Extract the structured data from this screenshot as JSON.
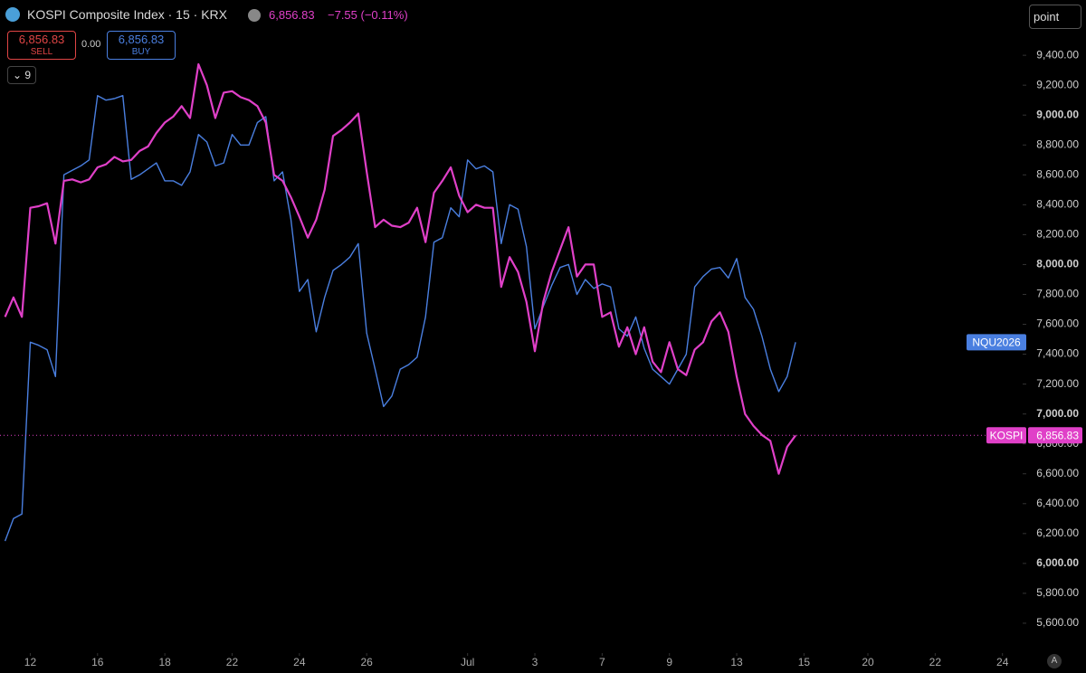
{
  "header": {
    "title": "KOSPI Composite Index · 15 · KRX",
    "last_price": "6,856.83",
    "change": "−7.55 (−0.11%)",
    "sell_price": "6,856.83",
    "sell_label": "SELL",
    "spread": "0.00",
    "buy_price": "6,856.83",
    "buy_label": "BUY",
    "indicator_count": "9",
    "search_text": "point",
    "auto_scale": "A"
  },
  "chart_data": {
    "type": "line",
    "grid": false,
    "x": [
      -0.75,
      -0.5,
      -0.25,
      0,
      0.25,
      0.5,
      0.75,
      1,
      1.25,
      1.5,
      1.75,
      2,
      2.25,
      2.5,
      2.75,
      3,
      3.25,
      3.5,
      3.75,
      4,
      4.25,
      4.5,
      4.75,
      5,
      5.25,
      5.5,
      5.75,
      6,
      6.25,
      6.5,
      6.75,
      7,
      7.25,
      7.5,
      7.75,
      8,
      8.25,
      8.5,
      8.75,
      9,
      9.25,
      9.5,
      9.75,
      10,
      10.25,
      10.5,
      10.75,
      11,
      11.25,
      11.5,
      11.75,
      12,
      12.25,
      12.5,
      12.75,
      13,
      13.25,
      13.5,
      13.75,
      14,
      14.25,
      14.5,
      14.75,
      15,
      15.25,
      15.5,
      15.75,
      16,
      16.25,
      16.5,
      16.75,
      17,
      17.25,
      17.5,
      17.75,
      18,
      18.25,
      18.5,
      18.75,
      19,
      19.25,
      19.5,
      19.75,
      20,
      20.25,
      20.5,
      20.75,
      21,
      21.25,
      21.5,
      21.75,
      22,
      22.25,
      22.5,
      22.75
    ],
    "series": [
      {
        "name": "NQU2026",
        "color": "#4a7fe0",
        "width": 1.4,
        "values": [
          6150,
          6300,
          6330,
          7480,
          7460,
          7430,
          7250,
          8600,
          8630,
          8660,
          8700,
          9130,
          9100,
          9110,
          9130,
          8570,
          8600,
          8640,
          8680,
          8560,
          8560,
          8530,
          8620,
          8870,
          8820,
          8660,
          8680,
          8870,
          8800,
          8800,
          8950,
          8990,
          8560,
          8620,
          8300,
          7820,
          7900,
          7550,
          7780,
          7960,
          8000,
          8050,
          8140,
          7540,
          7300,
          7050,
          7120,
          7300,
          7330,
          7380,
          7650,
          8150,
          8180,
          8380,
          8320,
          8700,
          8640,
          8660,
          8620,
          8140,
          8400,
          8370,
          8120,
          7570,
          7720,
          7860,
          7980,
          8000,
          7800,
          7900,
          7840,
          7870,
          7850,
          7570,
          7520,
          7650,
          7440,
          7300,
          7250,
          7200,
          7300,
          7400,
          7850,
          7920,
          7970,
          7980,
          7910,
          8040,
          7780,
          7700,
          7520,
          7300,
          7150,
          7250,
          7480
        ]
      },
      {
        "name": "KOSPI",
        "color": "#e040c8",
        "width": 2.2,
        "last_label": "6,856.83",
        "values": [
          7650,
          7780,
          7650,
          8380,
          8390,
          8410,
          8140,
          8560,
          8570,
          8550,
          8570,
          8650,
          8670,
          8720,
          8690,
          8700,
          8760,
          8790,
          8880,
          8950,
          8990,
          9060,
          8980,
          9340,
          9200,
          8980,
          9150,
          9160,
          9120,
          9100,
          9060,
          8950,
          8600,
          8560,
          8450,
          8320,
          8180,
          8300,
          8500,
          8860,
          8900,
          8950,
          9010,
          8620,
          8250,
          8300,
          8260,
          8250,
          8280,
          8380,
          8150,
          8480,
          8560,
          8650,
          8460,
          8350,
          8400,
          8380,
          8380,
          7850,
          8050,
          7950,
          7750,
          7420,
          7750,
          7950,
          8100,
          8250,
          7920,
          8000,
          8000,
          7650,
          7680,
          7450,
          7580,
          7400,
          7580,
          7350,
          7280,
          7480,
          7300,
          7260,
          7430,
          7480,
          7620,
          7680,
          7550,
          7250,
          7000,
          6920,
          6860,
          6820,
          6600,
          6780,
          6856.83
        ]
      }
    ],
    "xlim": [
      -0.9,
      29.5
    ],
    "xticks": [
      {
        "value": 0,
        "label": "12"
      },
      {
        "value": 2,
        "label": "16"
      },
      {
        "value": 4,
        "label": "18"
      },
      {
        "value": 6,
        "label": "22"
      },
      {
        "value": 8,
        "label": "24"
      },
      {
        "value": 10,
        "label": "26"
      },
      {
        "value": 13,
        "label": "Jul"
      },
      {
        "value": 15,
        "label": "3"
      },
      {
        "value": 17,
        "label": "7"
      },
      {
        "value": 19,
        "label": "9"
      },
      {
        "value": 21,
        "label": "13"
      },
      {
        "value": 23,
        "label": "15"
      },
      {
        "value": 24.9,
        "label": "20"
      },
      {
        "value": 26.9,
        "label": "22"
      },
      {
        "value": 28.9,
        "label": "24"
      }
    ],
    "ylim": [
      5400,
      9770
    ],
    "yticks": [
      {
        "value": 5600,
        "label": "5,600.00"
      },
      {
        "value": 5800,
        "label": "5,800.00"
      },
      {
        "value": 6000,
        "label": "6,000.00"
      },
      {
        "value": 6200,
        "label": "6,200.00"
      },
      {
        "value": 6400,
        "label": "6,400.00"
      },
      {
        "value": 6600,
        "label": "6,600.00"
      },
      {
        "value": 6800,
        "label": "6,800.00"
      },
      {
        "value": 7000,
        "label": "7,000.00"
      },
      {
        "value": 7200,
        "label": "7,200.00"
      },
      {
        "value": 7400,
        "label": "7,400.00"
      },
      {
        "value": 7600,
        "label": "7,600.00"
      },
      {
        "value": 7800,
        "label": "7,800.00"
      },
      {
        "value": 8000,
        "label": "8,000.00"
      },
      {
        "value": 8200,
        "label": "8,200.00"
      },
      {
        "value": 8400,
        "label": "8,400.00"
      },
      {
        "value": 8600,
        "label": "8,600.00"
      },
      {
        "value": 8800,
        "label": "8,800.00"
      },
      {
        "value": 9000,
        "label": "9,000.00"
      },
      {
        "value": 9200,
        "label": "9,200.00"
      },
      {
        "value": 9400,
        "label": "9,400.00"
      }
    ]
  }
}
